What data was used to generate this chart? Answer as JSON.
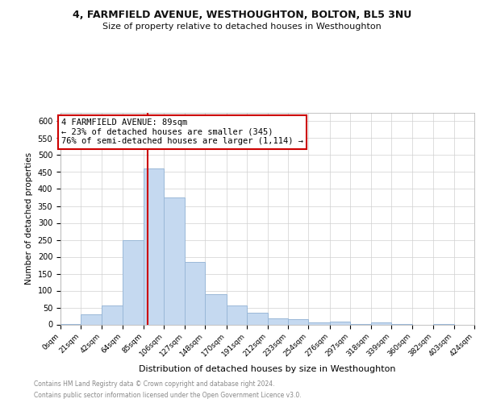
{
  "title": "4, FARMFIELD AVENUE, WESTHOUGHTON, BOLTON, BL5 3NU",
  "subtitle": "Size of property relative to detached houses in Westhoughton",
  "xlabel": "Distribution of detached houses by size in Westhoughton",
  "ylabel": "Number of detached properties",
  "annotation_line1": "4 FARMFIELD AVENUE: 89sqm",
  "annotation_line2": "← 23% of detached houses are smaller (345)",
  "annotation_line3": "76% of semi-detached houses are larger (1,114) →",
  "footer_line1": "Contains HM Land Registry data © Crown copyright and database right 2024.",
  "footer_line2": "Contains public sector information licensed under the Open Government Licence v3.0.",
  "property_size": 89,
  "bin_edges": [
    0,
    21,
    42,
    64,
    85,
    106,
    127,
    148,
    170,
    191,
    212,
    233,
    254,
    276,
    297,
    318,
    339,
    360,
    382,
    403,
    424
  ],
  "bin_labels": [
    "0sqm",
    "21sqm",
    "42sqm",
    "64sqm",
    "85sqm",
    "106sqm",
    "127sqm",
    "148sqm",
    "170sqm",
    "191sqm",
    "212sqm",
    "233sqm",
    "254sqm",
    "276sqm",
    "297sqm",
    "318sqm",
    "339sqm",
    "360sqm",
    "382sqm",
    "403sqm",
    "424sqm"
  ],
  "counts": [
    2,
    30,
    55,
    250,
    460,
    375,
    185,
    90,
    55,
    35,
    18,
    15,
    5,
    8,
    2,
    5,
    2,
    0,
    2,
    0,
    2
  ],
  "bar_color": "#c5d9f0",
  "bar_edge_color": "#9ab8d8",
  "vline_color": "#cc0000",
  "annotation_box_bg": "#ffffff",
  "annotation_box_edge": "#cc0000",
  "ylim": [
    0,
    625
  ],
  "yticks": [
    0,
    50,
    100,
    150,
    200,
    250,
    300,
    350,
    400,
    450,
    500,
    550,
    600
  ],
  "background_color": "#ffffff",
  "grid_color": "#d0d0d0",
  "title_fontsize": 9,
  "subtitle_fontsize": 8,
  "ylabel_fontsize": 7.5,
  "xlabel_fontsize": 8
}
